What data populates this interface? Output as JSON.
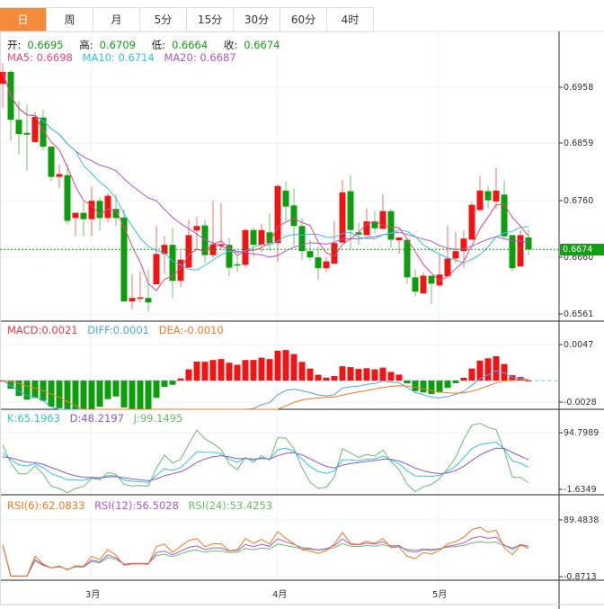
{
  "tabs": [
    {
      "label": "日",
      "active": true
    },
    {
      "label": "周"
    },
    {
      "label": "月"
    },
    {
      "label": "5分"
    },
    {
      "label": "15分"
    },
    {
      "label": "30分"
    },
    {
      "label": "60分"
    },
    {
      "label": "4时"
    }
  ],
  "ohlc_legend": {
    "open_label": "开:",
    "open": "0.6695",
    "high_label": "高:",
    "high": "0.6709",
    "low_label": "低:",
    "low": "0.6664",
    "close_label": "收:",
    "close": "0.6674"
  },
  "ma_legend": {
    "ma5": "MA5: 0.6698",
    "ma10": "MA10: 0.6714",
    "ma20": "MA20: 0.6687"
  },
  "macd_legend": {
    "macd": "MACD:0.0021",
    "diff": "DIFF:0.0001",
    "dea": "DEA:-0.0010"
  },
  "kdj_legend": {
    "k": "K:65.1963",
    "d": "D:48.2197",
    "j": "J:99.1495"
  },
  "rsi_legend": {
    "rsi6": "RSI(6):62.0833",
    "rsi12": "RSI(12):56.5028",
    "rsi24": "RSI(24):53.4253"
  },
  "current_price": "0.6674",
  "colors": {
    "up": "#f01414",
    "down": "#0c9e0c",
    "ma5": "#e8457a",
    "ma10": "#33c3dc",
    "ma20": "#b157c9",
    "active_tab": "#f28c3c"
  },
  "chart_data": {
    "type": "candlestick",
    "indicators": [
      "MA5",
      "MA10",
      "MA20",
      "MACD",
      "KDJ",
      "RSI"
    ],
    "price_axis": {
      "ticks": [
        "0.6958",
        "0.6859",
        "0.6760",
        "0.6660",
        "0.6561"
      ]
    },
    "macd_axis": {
      "ticks": [
        "0.0047",
        "-0.0028"
      ]
    },
    "kdj_axis": {
      "ticks": [
        "94.7989",
        "-1.6349"
      ]
    },
    "rsi_axis": {
      "ticks": [
        "89.4838",
        "-0.8713"
      ]
    },
    "x_ticks": [
      {
        "index": 11,
        "label": "3月"
      },
      {
        "index": 34,
        "label": "4月"
      },
      {
        "index": 54,
        "label": "5月"
      }
    ],
    "grid": true,
    "candles": [
      [
        0.6964,
        0.7,
        0.6922,
        0.6985
      ],
      [
        0.6985,
        0.6988,
        0.6864,
        0.6901
      ],
      [
        0.6901,
        0.6934,
        0.684,
        0.6876
      ],
      [
        0.6878,
        0.6927,
        0.6812,
        0.6875
      ],
      [
        0.6862,
        0.6915,
        0.6862,
        0.6906
      ],
      [
        0.6905,
        0.6919,
        0.6848,
        0.6854
      ],
      [
        0.6854,
        0.6854,
        0.6793,
        0.6801
      ],
      [
        0.6801,
        0.6823,
        0.6781,
        0.6806
      ],
      [
        0.6804,
        0.6823,
        0.6718,
        0.6724
      ],
      [
        0.6729,
        0.6738,
        0.6697,
        0.6738
      ],
      [
        0.6738,
        0.6757,
        0.6697,
        0.6727
      ],
      [
        0.6727,
        0.6784,
        0.6697,
        0.6759
      ],
      [
        0.6759,
        0.6765,
        0.6707,
        0.6729
      ],
      [
        0.6729,
        0.6773,
        0.6721,
        0.6768
      ],
      [
        0.6745,
        0.677,
        0.6715,
        0.6729
      ],
      [
        0.673,
        0.6744,
        0.6583,
        0.6583
      ],
      [
        0.6583,
        0.6631,
        0.6569,
        0.6589
      ],
      [
        0.6589,
        0.6636,
        0.6581,
        0.659
      ],
      [
        0.6589,
        0.6639,
        0.6565,
        0.6581
      ],
      [
        0.6613,
        0.6715,
        0.6613,
        0.6666
      ],
      [
        0.6666,
        0.6697,
        0.6631,
        0.6682
      ],
      [
        0.6682,
        0.6712,
        0.6589,
        0.6619
      ],
      [
        0.6619,
        0.6671,
        0.6608,
        0.6656
      ],
      [
        0.6642,
        0.6726,
        0.6642,
        0.6699
      ],
      [
        0.6707,
        0.6731,
        0.6674,
        0.6715
      ],
      [
        0.6716,
        0.6726,
        0.665,
        0.6664
      ],
      [
        0.6664,
        0.676,
        0.6659,
        0.6683
      ],
      [
        0.668,
        0.6755,
        0.6672,
        0.6683
      ],
      [
        0.6682,
        0.6694,
        0.6627,
        0.6642
      ],
      [
        0.6648,
        0.6664,
        0.6634,
        0.6646
      ],
      [
        0.6647,
        0.671,
        0.6642,
        0.6708
      ],
      [
        0.6708,
        0.6713,
        0.6661,
        0.6682
      ],
      [
        0.6682,
        0.6719,
        0.6669,
        0.6708
      ],
      [
        0.6704,
        0.6737,
        0.6671,
        0.6685
      ],
      [
        0.6685,
        0.6788,
        0.6652,
        0.6785
      ],
      [
        0.6777,
        0.6793,
        0.6723,
        0.6749
      ],
      [
        0.6751,
        0.678,
        0.6679,
        0.6715
      ],
      [
        0.6715,
        0.6729,
        0.6655,
        0.6671
      ],
      [
        0.6671,
        0.6691,
        0.6655,
        0.666
      ],
      [
        0.666,
        0.6679,
        0.662,
        0.6641
      ],
      [
        0.6641,
        0.666,
        0.6634,
        0.6653
      ],
      [
        0.6649,
        0.6723,
        0.6649,
        0.6685
      ],
      [
        0.6686,
        0.6796,
        0.6686,
        0.6774
      ],
      [
        0.6776,
        0.6804,
        0.6675,
        0.6708
      ],
      [
        0.6704,
        0.6721,
        0.6682,
        0.67
      ],
      [
        0.6699,
        0.6746,
        0.6699,
        0.6723
      ],
      [
        0.6723,
        0.6741,
        0.6702,
        0.6711
      ],
      [
        0.671,
        0.6771,
        0.671,
        0.6741
      ],
      [
        0.6741,
        0.6745,
        0.6677,
        0.6691
      ],
      [
        0.669,
        0.6695,
        0.6666,
        0.6695
      ],
      [
        0.6691,
        0.6691,
        0.6614,
        0.6625
      ],
      [
        0.6625,
        0.6639,
        0.6592,
        0.66
      ],
      [
        0.6597,
        0.6634,
        0.6597,
        0.6628
      ],
      [
        0.6628,
        0.6628,
        0.6578,
        0.6614
      ],
      [
        0.6611,
        0.6666,
        0.6608,
        0.663
      ],
      [
        0.6627,
        0.6716,
        0.6627,
        0.6658
      ],
      [
        0.6658,
        0.6704,
        0.665,
        0.6671
      ],
      [
        0.6671,
        0.6707,
        0.6642,
        0.6693
      ],
      [
        0.6691,
        0.6757,
        0.6691,
        0.6752
      ],
      [
        0.6743,
        0.6802,
        0.6741,
        0.6777
      ],
      [
        0.6776,
        0.6785,
        0.6746,
        0.676
      ],
      [
        0.6758,
        0.6817,
        0.6745,
        0.6777
      ],
      [
        0.677,
        0.6795,
        0.6691,
        0.6697
      ],
      [
        0.6699,
        0.6699,
        0.6636,
        0.6641
      ],
      [
        0.6644,
        0.6708,
        0.6644,
        0.6699
      ],
      [
        0.6695,
        0.6709,
        0.6664,
        0.6674
      ]
    ]
  }
}
